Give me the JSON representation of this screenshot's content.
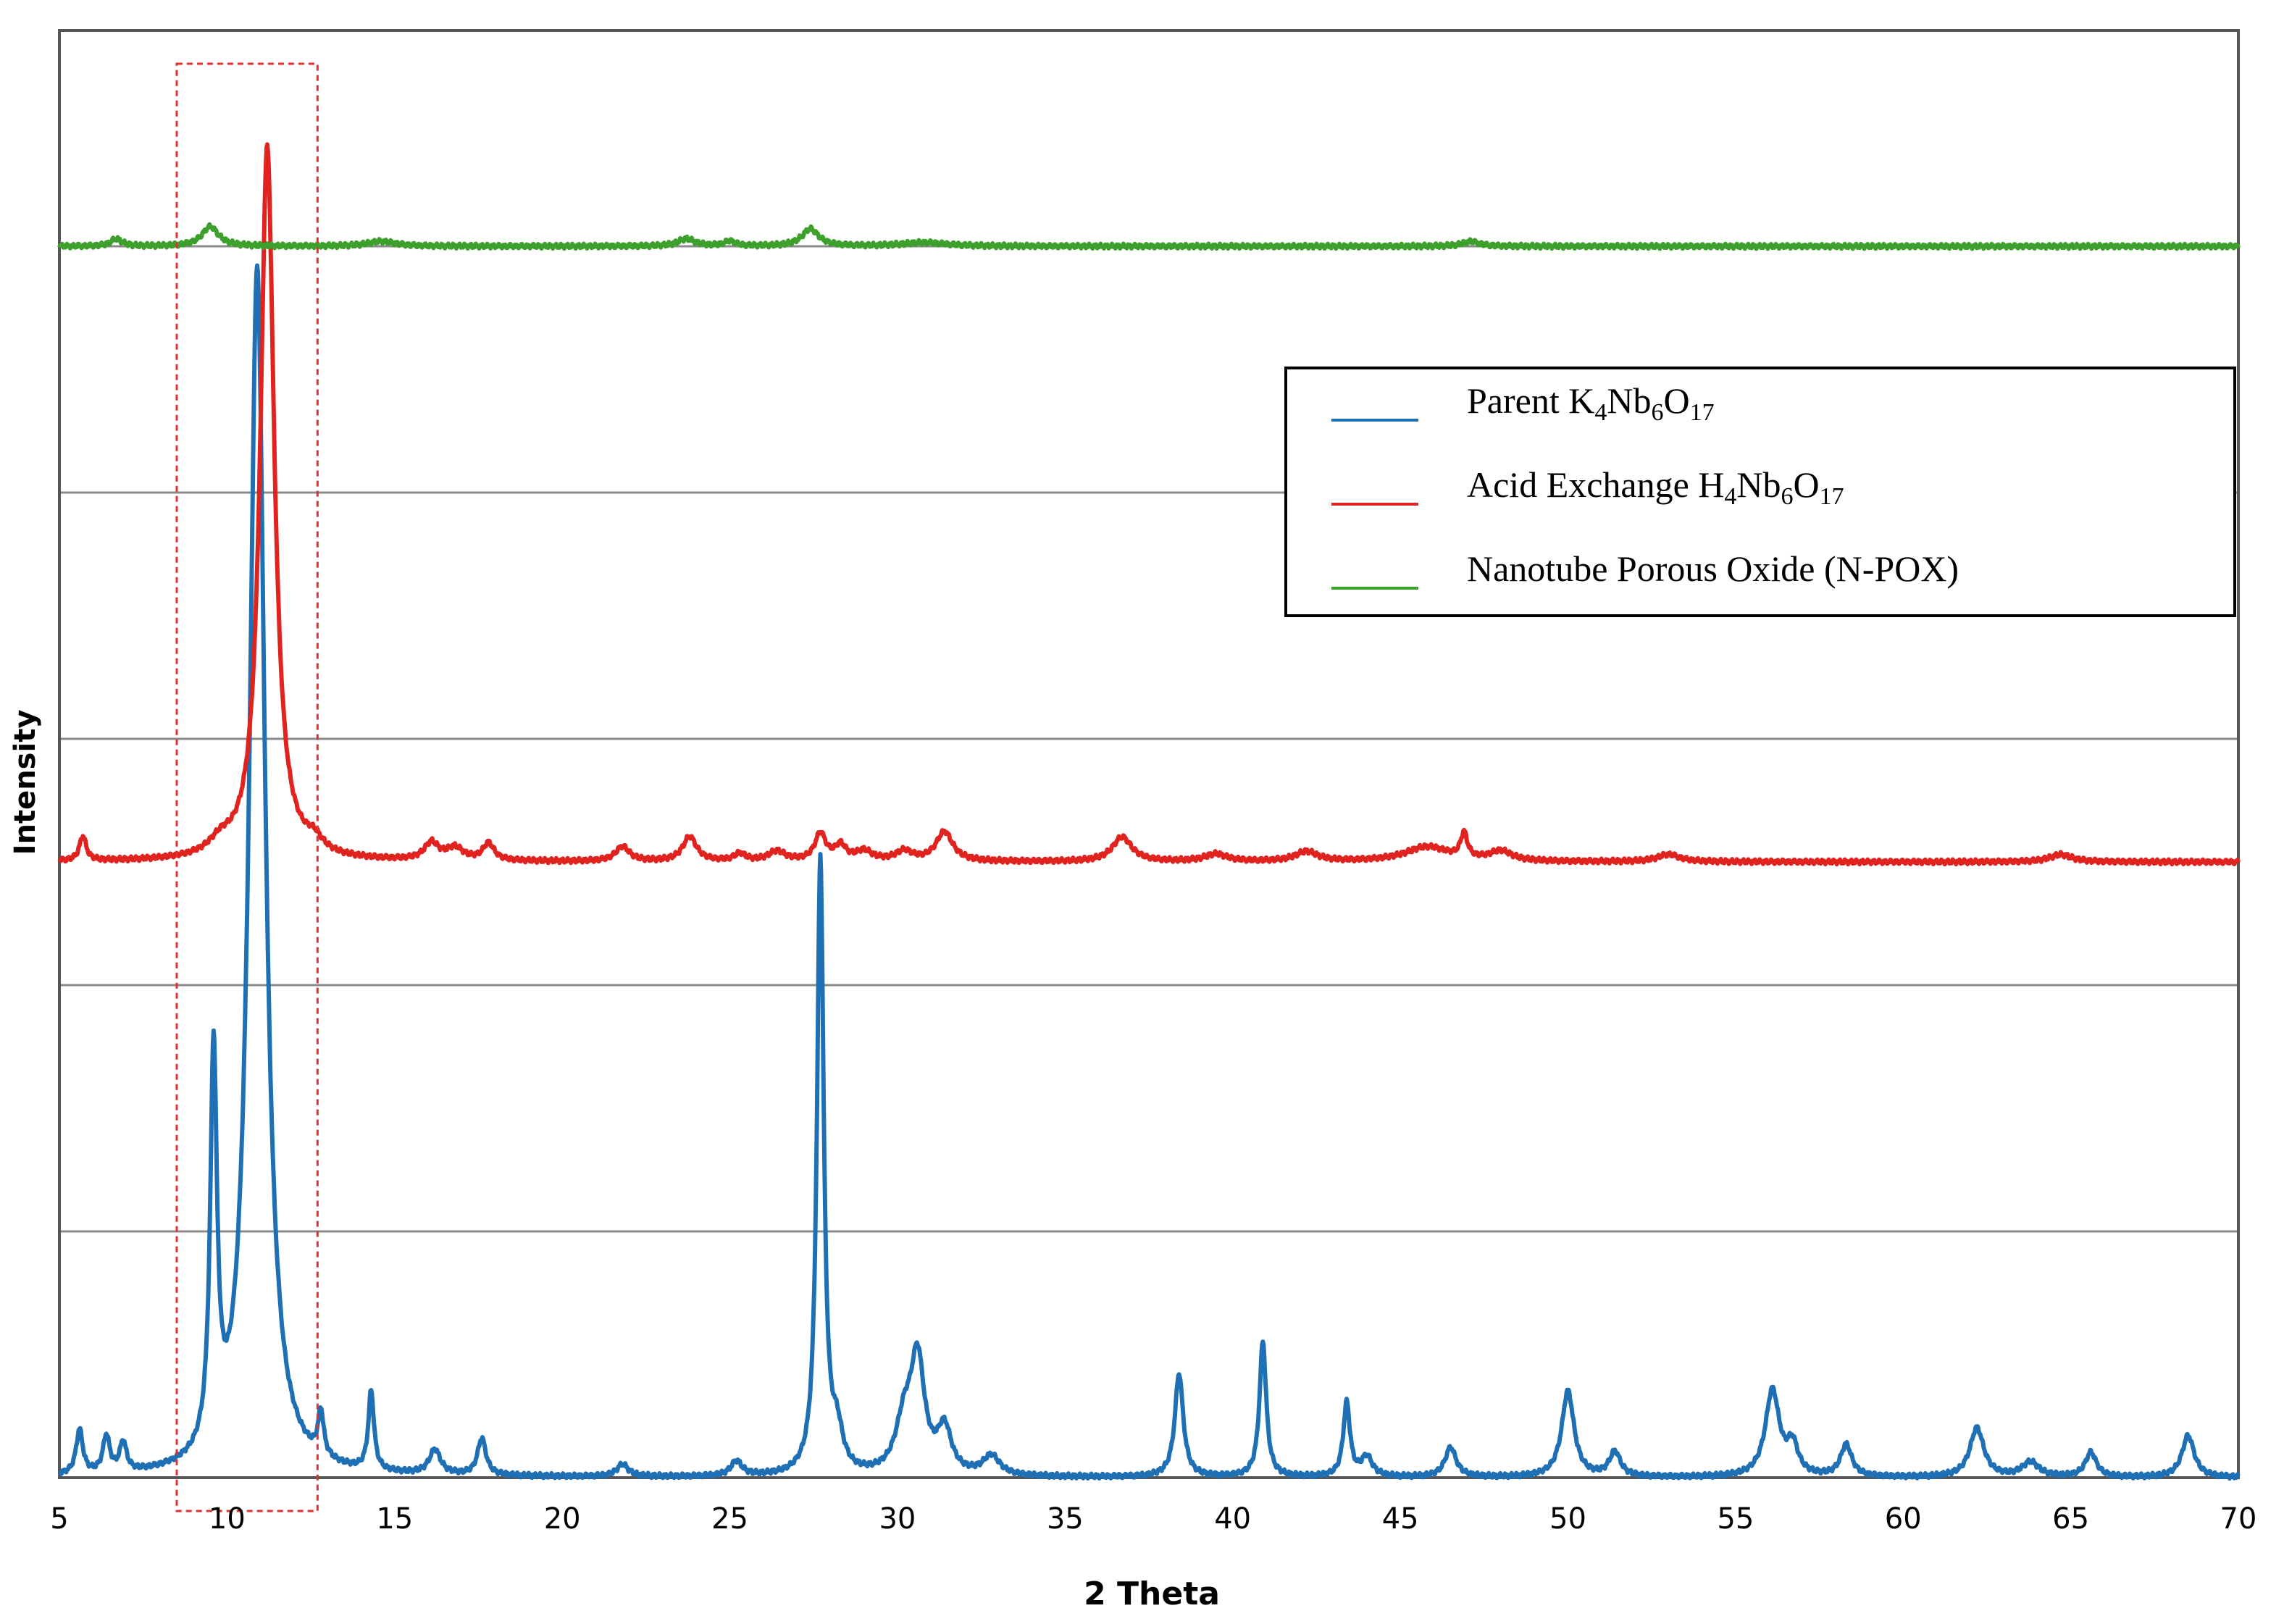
{
  "chart_data": {
    "type": "line",
    "title": "",
    "xlabel": "2 Theta",
    "ylabel": "Intensity",
    "xlim": [
      5,
      70
    ],
    "x_ticks": [
      "5",
      "10",
      "15",
      "20",
      "25",
      "30",
      "35",
      "40",
      "45",
      "50",
      "55",
      "60",
      "65",
      "70"
    ],
    "y_tick_labels": false,
    "grid": "horizontal",
    "legend_position": "top-right",
    "highlight_box": {
      "x_range": [
        8.5,
        12.7
      ],
      "style": "red dotted rectangle"
    },
    "series": [
      {
        "name": "Parent K4Nb6O17",
        "label_html": "Parent K<tspan font-size='34' dy='10'>4</tspan><tspan dy='-10'>Nb</tspan><tspan font-size='34' dy='10'>6</tspan><tspan dy='-10'>O</tspan><tspan font-size='34' dy='10'>17</tspan>",
        "color": "#1f6fb4",
        "baseline": 0,
        "peaks": [
          [
            5.6,
            0.18,
            0.12
          ],
          [
            6.4,
            0.15,
            0.12
          ],
          [
            6.9,
            0.12,
            0.12
          ],
          [
            9.6,
            1.6,
            0.12
          ],
          [
            10.9,
            4.9,
            0.28
          ],
          [
            12.8,
            0.18,
            0.1
          ],
          [
            14.3,
            0.32,
            0.1
          ],
          [
            16.2,
            0.1,
            0.2
          ],
          [
            17.6,
            0.15,
            0.15
          ],
          [
            21.8,
            0.05,
            0.2
          ],
          [
            25.2,
            0.06,
            0.2
          ],
          [
            27.7,
            2.5,
            0.12
          ],
          [
            28.2,
            0.15,
            0.2
          ],
          [
            30.2,
            0.2,
            0.3
          ],
          [
            30.6,
            0.45,
            0.25
          ],
          [
            31.4,
            0.18,
            0.25
          ],
          [
            32.8,
            0.08,
            0.3
          ],
          [
            38.4,
            0.42,
            0.15
          ],
          [
            40.9,
            0.55,
            0.12
          ],
          [
            43.4,
            0.3,
            0.12
          ],
          [
            44.0,
            0.08,
            0.2
          ],
          [
            46.5,
            0.12,
            0.2
          ],
          [
            50.0,
            0.35,
            0.22
          ],
          [
            51.4,
            0.1,
            0.2
          ],
          [
            56.1,
            0.35,
            0.25
          ],
          [
            56.7,
            0.12,
            0.2
          ],
          [
            58.3,
            0.13,
            0.2
          ],
          [
            62.2,
            0.2,
            0.25
          ],
          [
            63.8,
            0.06,
            0.3
          ],
          [
            65.6,
            0.1,
            0.2
          ],
          [
            68.5,
            0.17,
            0.22
          ]
        ]
      },
      {
        "name": "Acid Exchange H4Nb6O17",
        "label_html": "Acid Exchange H<tspan font-size='34' dy='10'>4</tspan><tspan dy='-10'>Nb</tspan><tspan font-size='34' dy='10'>6</tspan><tspan dy='-10'>O</tspan><tspan font-size='34' dy='10'>17</tspan>",
        "color": "#e0231f",
        "baseline": 2.5,
        "peaks": [
          [
            5.7,
            0.1,
            0.12
          ],
          [
            9.8,
            0.05,
            0.4
          ],
          [
            11.2,
            2.9,
            0.25
          ],
          [
            12.6,
            0.05,
            0.3
          ],
          [
            16.1,
            0.07,
            0.25
          ],
          [
            16.8,
            0.05,
            0.3
          ],
          [
            17.8,
            0.07,
            0.2
          ],
          [
            21.8,
            0.06,
            0.25
          ],
          [
            23.8,
            0.1,
            0.25
          ],
          [
            25.3,
            0.03,
            0.2
          ],
          [
            26.4,
            0.04,
            0.3
          ],
          [
            27.7,
            0.11,
            0.2
          ],
          [
            28.3,
            0.06,
            0.2
          ],
          [
            29.0,
            0.04,
            0.3
          ],
          [
            30.2,
            0.04,
            0.3
          ],
          [
            31.4,
            0.12,
            0.3
          ],
          [
            36.7,
            0.1,
            0.35
          ],
          [
            39.5,
            0.03,
            0.4
          ],
          [
            42.2,
            0.04,
            0.4
          ],
          [
            45.8,
            0.06,
            0.8
          ],
          [
            46.9,
            0.1,
            0.12
          ],
          [
            48.0,
            0.04,
            0.4
          ],
          [
            53.0,
            0.03,
            0.4
          ],
          [
            64.7,
            0.03,
            0.4
          ]
        ]
      },
      {
        "name": "Nanotube Porous Oxide (N-POX)",
        "label_html": "Nanotube Porous Oxide (N-POX)",
        "color": "#3ea02c",
        "baseline": 5.0,
        "peaks": [
          [
            6.7,
            0.03,
            0.2
          ],
          [
            9.5,
            0.08,
            0.3
          ],
          [
            14.6,
            0.02,
            0.5
          ],
          [
            23.7,
            0.03,
            0.3
          ],
          [
            25.0,
            0.02,
            0.2
          ],
          [
            27.4,
            0.07,
            0.3
          ],
          [
            30.8,
            0.015,
            0.8
          ],
          [
            47.1,
            0.02,
            0.3
          ]
        ]
      }
    ]
  }
}
